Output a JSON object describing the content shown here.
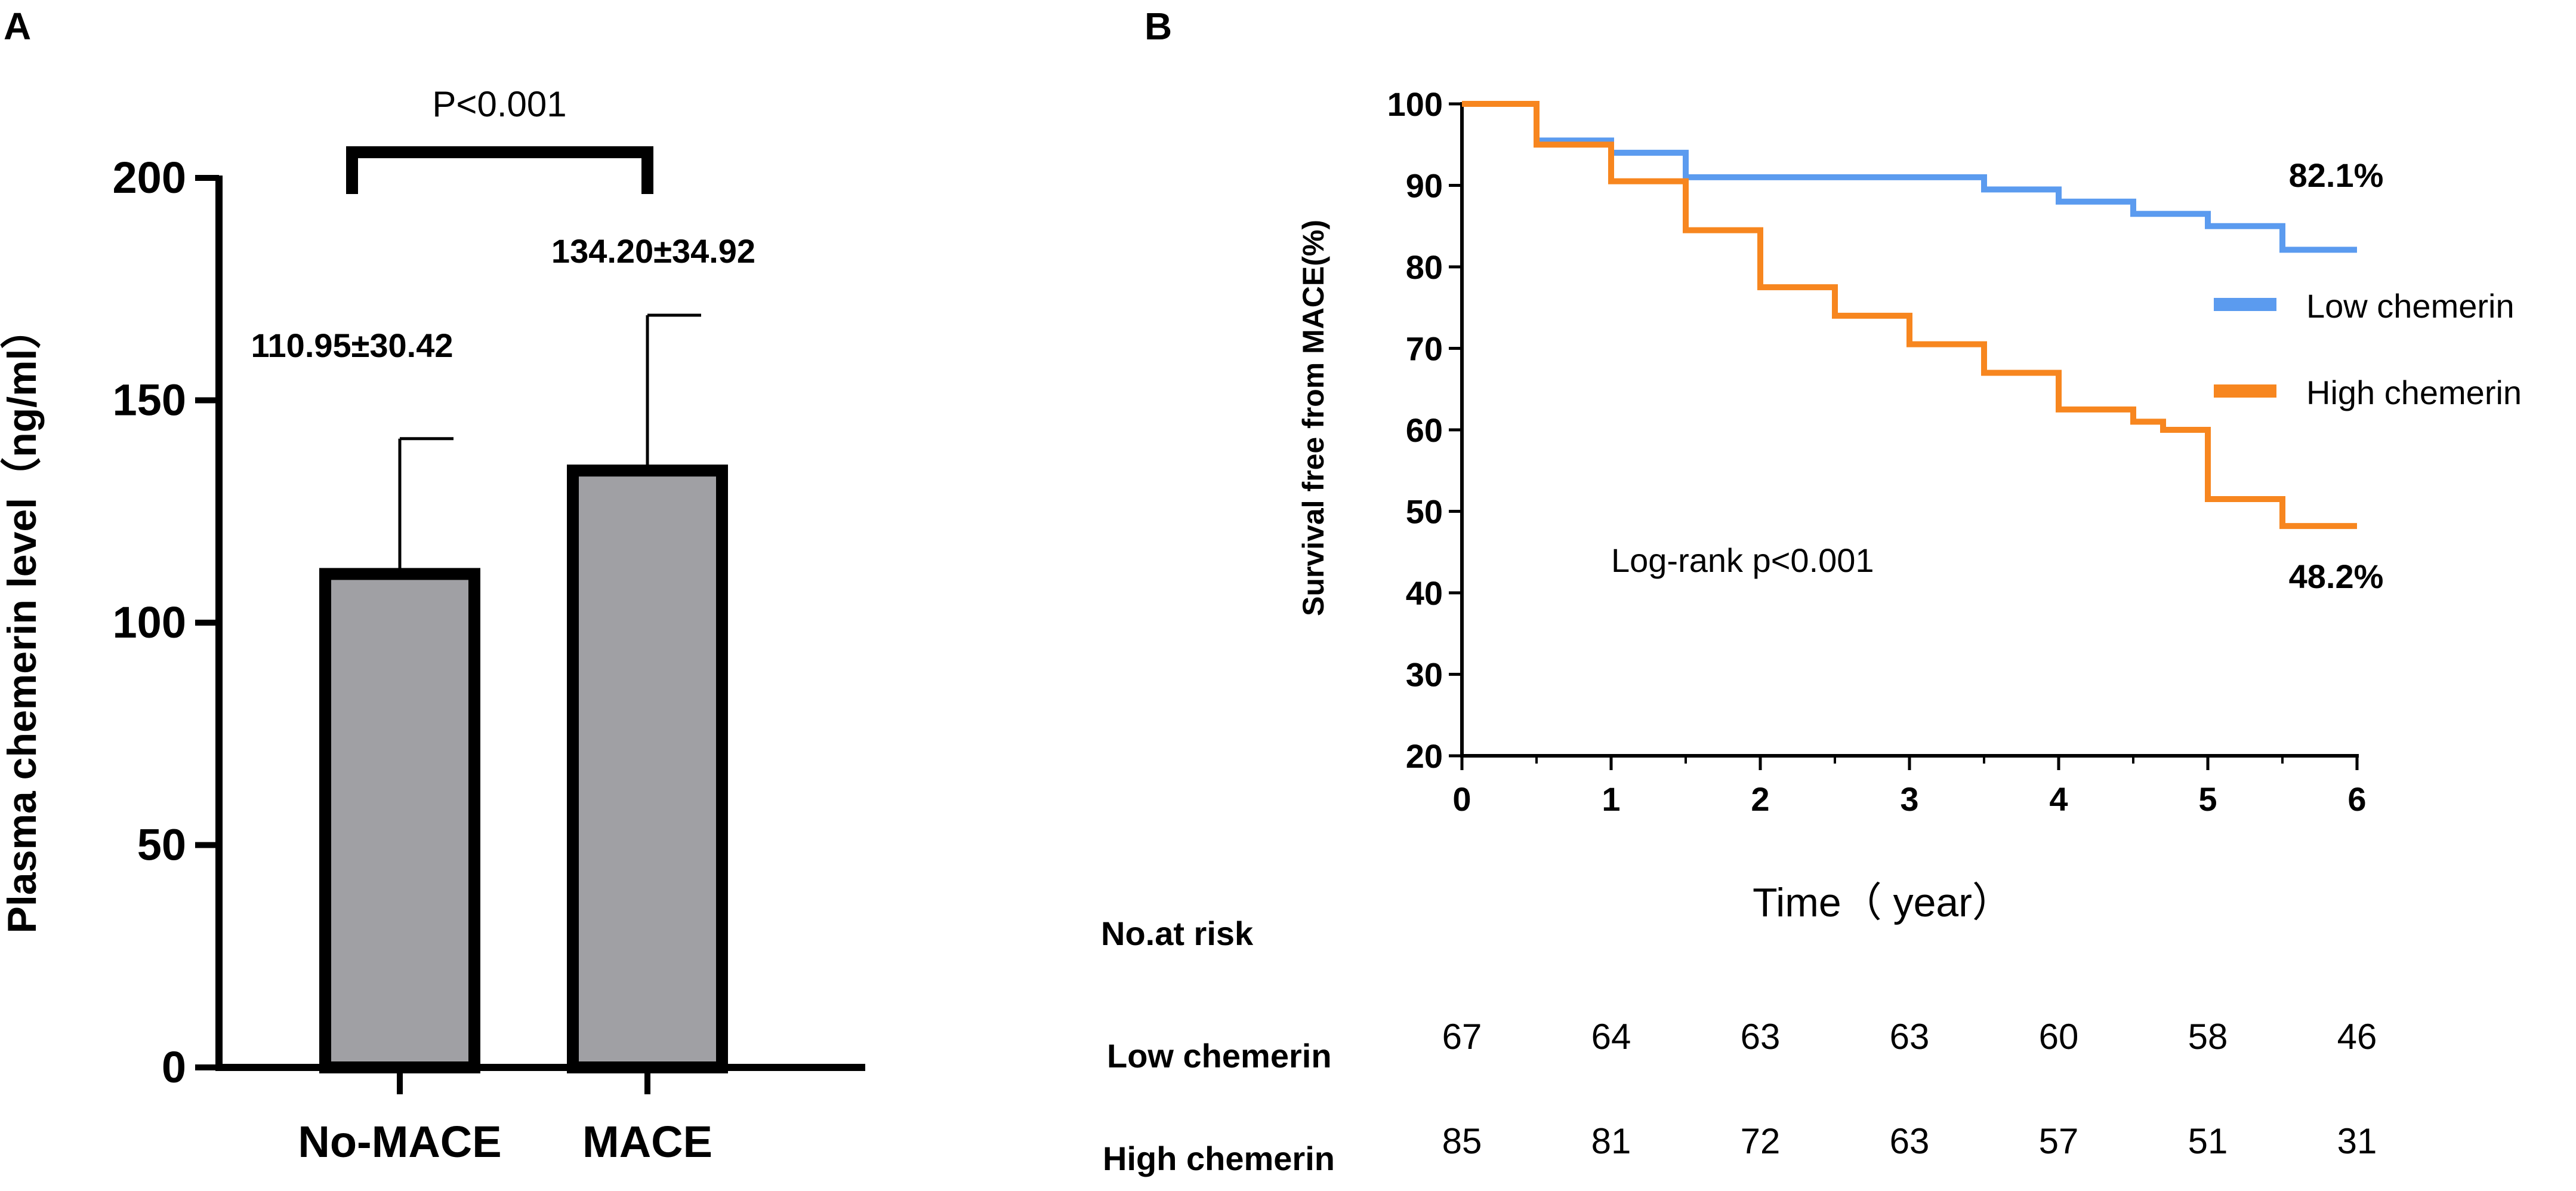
{
  "panels": {
    "a": {
      "label": "A"
    },
    "b": {
      "label": "B"
    }
  },
  "chart_data": [
    {
      "type": "bar",
      "panel": "A",
      "title": "",
      "xlabel": "",
      "ylabel": "Plasma chemerin level（ng/ml）",
      "ylim": [
        0,
        200
      ],
      "yticks": [
        "0",
        "50",
        "100",
        "150",
        "200"
      ],
      "categories": [
        "No-MACE",
        "MACE"
      ],
      "values": [
        110.95,
        134.2
      ],
      "errors": [
        30.42,
        34.92
      ],
      "value_labels": [
        "110.95±30.42",
        "134.20±34.92"
      ],
      "significance": "P<0.001",
      "bar_fill": "#a0a0a4",
      "bar_edge": "#000000"
    },
    {
      "type": "line",
      "subtype": "kaplan-meier",
      "panel": "B",
      "title": "",
      "xlabel": "Time（ year）",
      "ylabel": "Survival free from MACE(%)",
      "xlim": [
        0,
        6
      ],
      "ylim": [
        20,
        100
      ],
      "xticks": [
        "0",
        "1",
        "2",
        "3",
        "4",
        "5",
        "6"
      ],
      "yticks": [
        "20",
        "30",
        "40",
        "50",
        "60",
        "70",
        "80",
        "90",
        "100"
      ],
      "legend_position": "right",
      "annotation": "Log-rank p<0.001",
      "series": [
        {
          "name": "Low chemerin",
          "color": "#5b9bef",
          "end_label": "82.1%",
          "steps": [
            [
              0,
              100
            ],
            [
              0.5,
              95.5
            ],
            [
              1,
              94
            ],
            [
              1.5,
              91
            ],
            [
              3.5,
              89.5
            ],
            [
              4,
              88
            ],
            [
              4.5,
              86.5
            ],
            [
              5,
              85
            ],
            [
              5.5,
              82.1
            ],
            [
              6,
              82.1
            ]
          ]
        },
        {
          "name": "High chemerin",
          "color": "#f7861f",
          "end_label": "48.2%",
          "steps": [
            [
              0,
              100
            ],
            [
              0.5,
              95
            ],
            [
              1,
              90.5
            ],
            [
              1.5,
              84.5
            ],
            [
              2,
              77.5
            ],
            [
              2.5,
              74
            ],
            [
              3,
              70.5
            ],
            [
              3.5,
              67
            ],
            [
              4,
              62.5
            ],
            [
              4.5,
              61
            ],
            [
              4.7,
              60
            ],
            [
              5,
              51.5
            ],
            [
              5.5,
              48.2
            ],
            [
              6,
              48.2
            ]
          ]
        }
      ],
      "risk_table": {
        "title": "No.at risk",
        "rows": [
          {
            "label": "Low chemerin",
            "values": [
              "67",
              "64",
              "63",
              "63",
              "60",
              "58",
              "46"
            ]
          },
          {
            "label": "High chemerin",
            "values": [
              "85",
              "81",
              "72",
              "63",
              "57",
              "51",
              "31"
            ]
          }
        ]
      }
    }
  ]
}
